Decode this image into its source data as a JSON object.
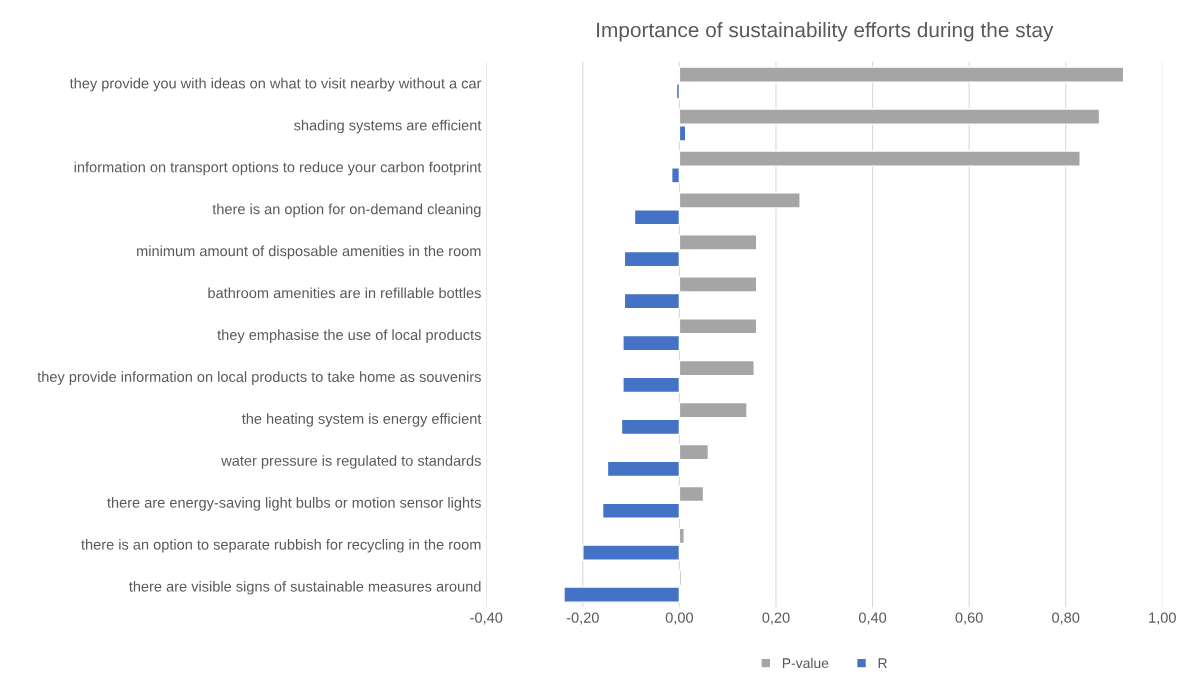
{
  "chart_data": {
    "type": "bar",
    "orientation": "horizontal",
    "title": "Importance of sustainability efforts during the stay",
    "categories": [
      "they provide you with ideas on what to visit nearby without a car",
      "shading systems are efficient",
      "information on transport options to reduce your carbon footprint",
      "there is an option for on-demand cleaning",
      "minimum amount of disposable amenities in the room",
      "bathroom amenities are in refillable bottles",
      "they emphasise the use of local products",
      "they provide information on local products to take home as souvenirs",
      "the heating system is energy efficient",
      "water pressure is regulated to standards",
      "there are energy-saving light bulbs or motion sensor lights",
      "there is an option to separate rubbish for recycling in the room",
      "there are visible signs of sustainable measures around"
    ],
    "series": [
      {
        "name": "P-value",
        "color": "#a5a5a5",
        "values": [
          0.92,
          0.87,
          0.83,
          0.25,
          0.16,
          0.16,
          0.16,
          0.155,
          0.14,
          0.06,
          0.05,
          0.01,
          0.004
        ]
      },
      {
        "name": "R",
        "color": "#4472c4",
        "values": [
          -0.006,
          0.013,
          -0.016,
          -0.093,
          -0.114,
          -0.114,
          -0.117,
          -0.117,
          -0.12,
          -0.149,
          -0.159,
          -0.2,
          -0.239
        ]
      }
    ],
    "xlim": [
      -0.4,
      1.0
    ],
    "xticks": [
      {
        "value": -0.4,
        "label": "-0,40"
      },
      {
        "value": -0.2,
        "label": "-0,20"
      },
      {
        "value": 0,
        "label": "0,00"
      },
      {
        "value": 0.2,
        "label": "0,20"
      },
      {
        "value": 0.4,
        "label": "0,40"
      },
      {
        "value": 0.6,
        "label": "0,60"
      },
      {
        "value": 0.8,
        "label": "0,80"
      },
      {
        "value": 1.0,
        "label": "1,00"
      }
    ],
    "grid": "x",
    "legend": "bottom"
  }
}
